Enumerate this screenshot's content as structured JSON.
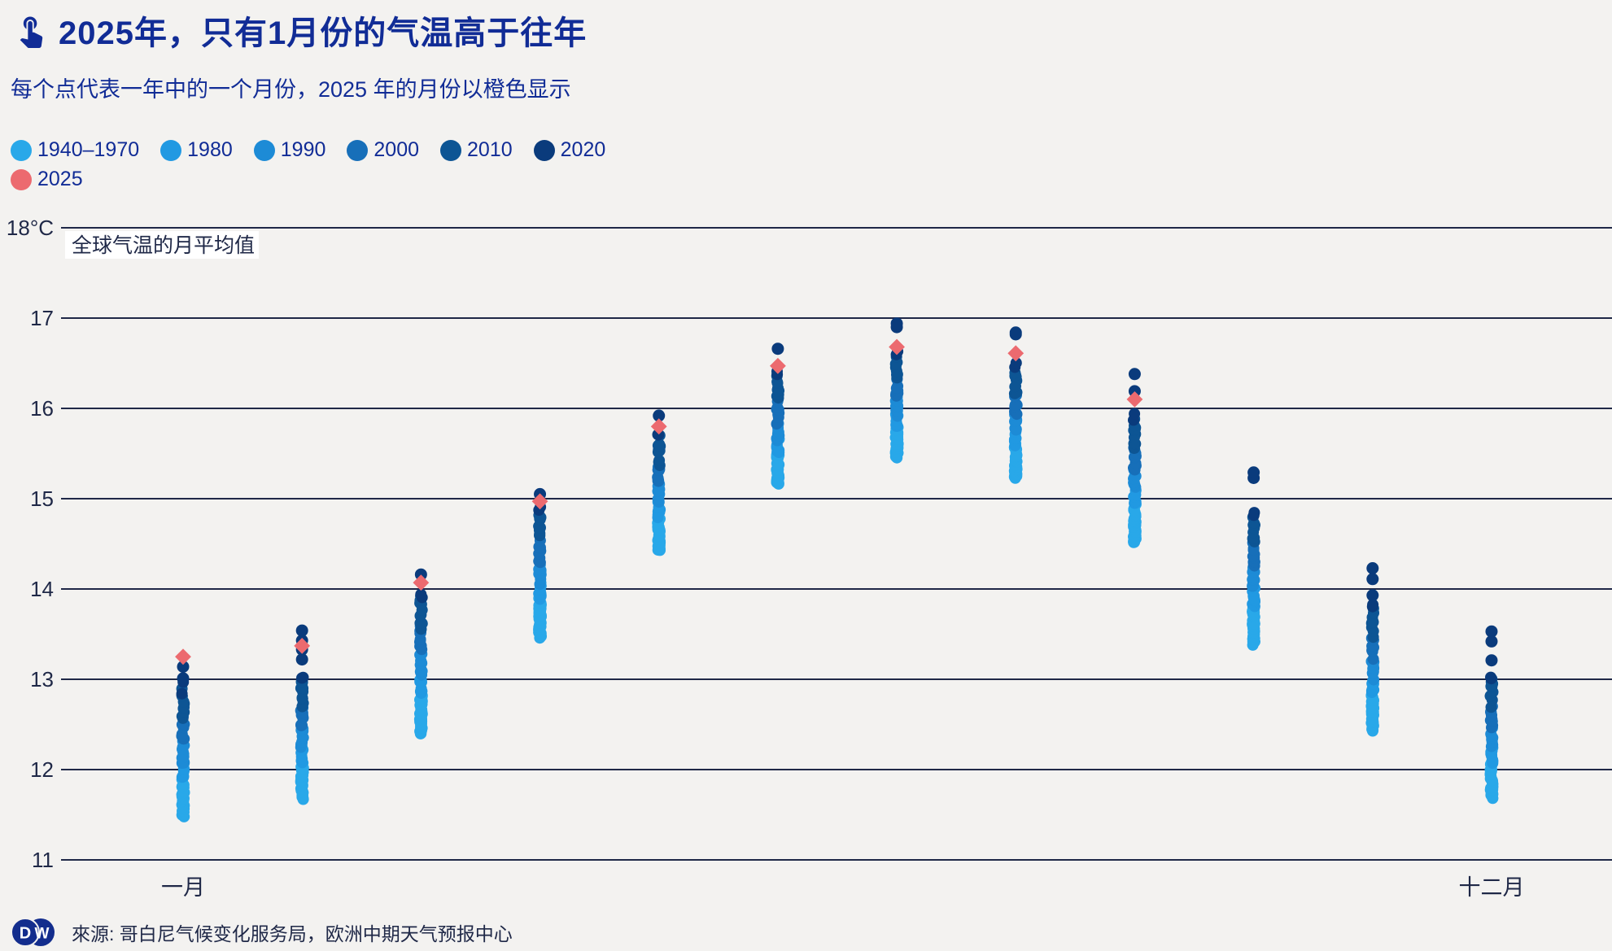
{
  "header": {
    "title": "2025年，只有1月份的气温高于往年",
    "icon": "touch-app-icon"
  },
  "subtitle": "每个点代表一年中的一个月份，2025 年的月份以橙色显示",
  "legend": {
    "rows": [
      [
        {
          "label": "1940–1970",
          "color": "#29A8E9"
        },
        {
          "label": "1980",
          "color": "#2199E2"
        },
        {
          "label": "1990",
          "color": "#1D8BD6"
        },
        {
          "label": "2000",
          "color": "#176FB9"
        },
        {
          "label": "2010",
          "color": "#0D5594"
        },
        {
          "label": "2020",
          "color": "#0A3B7C"
        }
      ],
      [
        {
          "label": "2025",
          "color": "#EC6A6F"
        }
      ]
    ]
  },
  "footer": {
    "logo_letters": [
      "D",
      "W"
    ],
    "logo_color": "#132D8D",
    "source": "來源: 哥白尼气候变化服务局，欧洲中期天气预报中心"
  },
  "colors": {
    "background": "#F3F2F0",
    "headline_navy": "#112C96",
    "axis_navy": "#1F2847",
    "highlight_2025": "#EC6A6F"
  },
  "chart_data": {
    "type": "scatter",
    "subtype": "vertical-strip-plot",
    "ylabel": "全球气温的月平均值",
    "unit": "°C",
    "ylim": [
      11,
      18
    ],
    "grid": true,
    "yticks": [
      {
        "v": 18,
        "label": "18°C"
      },
      {
        "v": 17,
        "label": "17"
      },
      {
        "v": 16,
        "label": "16"
      },
      {
        "v": 15,
        "label": "15"
      },
      {
        "v": 14,
        "label": "14"
      },
      {
        "v": 13,
        "label": "13"
      },
      {
        "v": 12,
        "label": "12"
      },
      {
        "v": 11,
        "label": "11"
      }
    ],
    "years_body": [
      1940,
      2021
    ],
    "decade_colors": {
      "1940": "#29A8E9",
      "1980": "#2199E2",
      "1990": "#1D8BD6",
      "2000": "#176FB9",
      "2010": "#0D5594",
      "2020": "#0A3B7C",
      "2025": "#EC6A6F"
    },
    "months": [
      {
        "m": 1,
        "tick": "一月",
        "min": 11.49,
        "body_top": 12.92,
        "recent_dots": [
          13.01,
          13.14
        ],
        "v2025": 13.25
      },
      {
        "m": 2,
        "tick": null,
        "min": 11.68,
        "body_top": 13.06,
        "recent_dots": [
          13.22,
          13.33,
          13.43,
          13.54
        ],
        "v2025": 13.37
      },
      {
        "m": 3,
        "tick": null,
        "min": 12.4,
        "body_top": 13.98,
        "recent_dots": [
          14.16
        ],
        "v2025": 14.07
      },
      {
        "m": 4,
        "tick": null,
        "min": 13.47,
        "body_top": 14.9,
        "recent_dots": [
          15.05
        ],
        "v2025": 14.97
      },
      {
        "m": 5,
        "tick": null,
        "min": 14.43,
        "body_top": 15.72,
        "recent_dots": [
          15.92
        ],
        "v2025": 15.8
      },
      {
        "m": 6,
        "tick": null,
        "min": 15.17,
        "body_top": 16.38,
        "recent_dots": [
          16.66
        ],
        "v2025": 16.47
      },
      {
        "m": 7,
        "tick": null,
        "min": 15.46,
        "body_top": 16.62,
        "recent_dots": [
          16.9,
          16.94
        ],
        "v2025": 16.68
      },
      {
        "m": 8,
        "tick": null,
        "min": 15.24,
        "body_top": 16.49,
        "recent_dots": [
          16.82,
          16.84
        ],
        "v2025": 16.61
      },
      {
        "m": 9,
        "tick": null,
        "min": 14.52,
        "body_top": 15.93,
        "recent_dots": [
          16.19,
          16.38
        ],
        "v2025": 16.1
      },
      {
        "m": 10,
        "tick": null,
        "min": 13.39,
        "body_top": 14.88,
        "recent_dots": [
          15.23,
          15.29
        ],
        "v2025": null
      },
      {
        "m": 11,
        "tick": null,
        "min": 12.44,
        "body_top": 13.85,
        "recent_dots": [
          13.93,
          14.11,
          14.23
        ],
        "v2025": null
      },
      {
        "m": 12,
        "tick": "十二月",
        "min": 11.69,
        "body_top": 13.06,
        "recent_dots": [
          13.21,
          13.42,
          13.53
        ],
        "v2025": null
      }
    ]
  }
}
